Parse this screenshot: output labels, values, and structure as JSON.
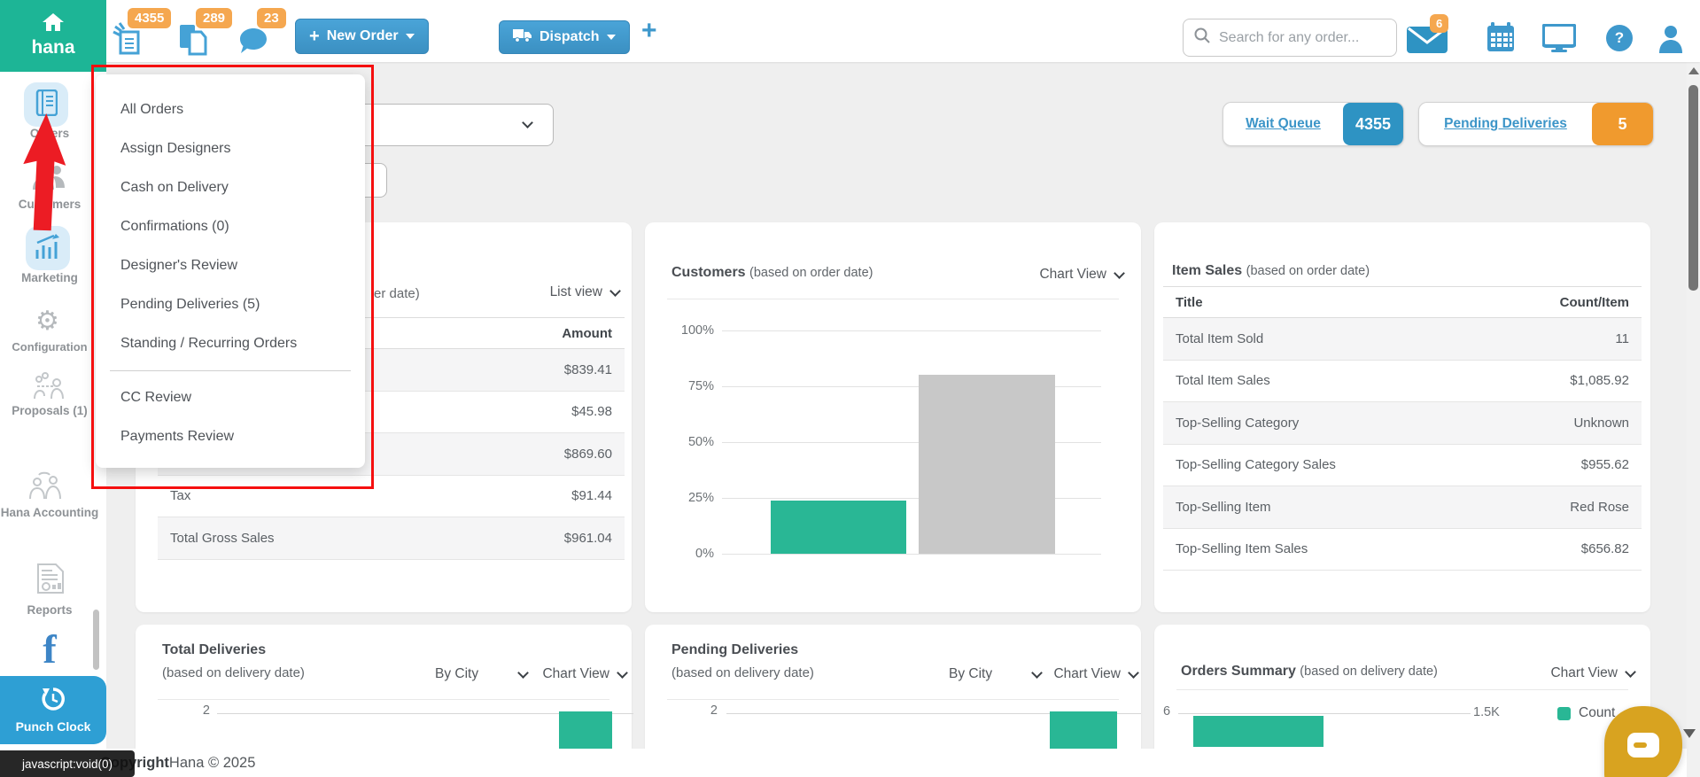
{
  "topbar": {
    "brand": "hana",
    "orders_badge": "4355",
    "copies_badge": "289",
    "chat_badge": "23",
    "new_order_label": "New Order",
    "dispatch_label": "Dispatch",
    "plus": "+",
    "search_placeholder": "Search for any order...",
    "mail_badge": "6",
    "help_glyph": "?"
  },
  "sidebar": {
    "orders": "Orders",
    "customers": "Customers",
    "marketing": "Marketing",
    "configuration": "Configuration",
    "proposals": "Proposals (1)",
    "accounting": "Hana Accounting",
    "reports": "Reports",
    "facebook": "f",
    "punch_clock": "Punch Clock"
  },
  "orders_menu": {
    "items": [
      "All Orders",
      "Assign Designers",
      "Cash on Delivery",
      "Confirmations (0)",
      "Designer's Review",
      "Pending Deliveries (5)",
      "Standing / Recurring Orders",
      "CC Review",
      "Payments Review"
    ]
  },
  "queue": {
    "wait_label": "Wait Queue",
    "wait_count": "4355",
    "pending_label": "Pending Deliveries",
    "pending_count": "5"
  },
  "sales_card": {
    "title_fragment": "er date)",
    "view": "List view",
    "amount_header": "Amount",
    "rows": [
      {
        "label": "",
        "value": "$839.41"
      },
      {
        "label": "",
        "value": "$45.98"
      },
      {
        "label": "",
        "value": "$869.60"
      },
      {
        "label": "Tax",
        "value": "$91.44"
      },
      {
        "label": "Total Gross Sales",
        "value": "$961.04"
      }
    ]
  },
  "customers_card": {
    "title": "Customers",
    "subtitle": "(based on order date)",
    "view": "Chart View",
    "yticks": [
      "100%",
      "75%",
      "50%",
      "25%",
      "0%"
    ]
  },
  "item_sales_card": {
    "title": "Item Sales",
    "subtitle": "(based on order date)",
    "col1": "Title",
    "col2": "Count/Item",
    "rows": [
      {
        "label": "Total Item Sold",
        "value": "11"
      },
      {
        "label": "Total Item Sales",
        "value": "$1,085.92"
      },
      {
        "label": "Top-Selling Category",
        "value": "Unknown"
      },
      {
        "label": "Top-Selling Category Sales",
        "value": "$955.62"
      },
      {
        "label": "Top-Selling Item",
        "value": "Red Rose"
      },
      {
        "label": "Top-Selling Item Sales",
        "value": "$656.82"
      }
    ]
  },
  "total_deliveries_card": {
    "title": "Total Deliveries",
    "subtitle": "(based on delivery date)",
    "by": "By City",
    "view": "Chart View",
    "ytick": "2"
  },
  "pending_deliveries_card": {
    "title": "Pending Deliveries",
    "subtitle": "(based on delivery date)",
    "by": "By City",
    "view": "Chart View",
    "ytick": "2"
  },
  "orders_summary_card": {
    "title": "Orders Summary",
    "subtitle": "(based on delivery date)",
    "view": "Chart View",
    "ytick": "6",
    "axis_end": "1.5K",
    "legend_count": "Count"
  },
  "footer": {
    "tooltip": "javascript:void(0)",
    "copyright_bold": "Copyright",
    "copyright_rest": "Hana © 2025"
  },
  "colors": {
    "teal": "#1db596",
    "button_blue": "#3e96c9",
    "badge_orange": "#f5a74f",
    "pill_blue": "#2e93c3",
    "pill_orange": "#f09a2e",
    "bar_green": "#29b795",
    "bar_gray": "#c8c8c8",
    "fab_gold": "#d8a320",
    "annotation_red": "#f50f0f"
  },
  "chart_data": [
    {
      "id": "customers",
      "type": "bar",
      "title": "Customers (based on order date)",
      "categories": [
        "",
        ""
      ],
      "values": [
        24,
        80
      ],
      "colors": [
        "#29b795",
        "#c8c8c8"
      ],
      "ylim": [
        0,
        100
      ],
      "yticks": [
        0,
        25,
        50,
        75,
        100
      ],
      "ytick_format": "percent",
      "grid": true,
      "legend_position": "none"
    },
    {
      "id": "total_deliveries",
      "type": "bar",
      "title": "Total Deliveries (based on delivery date)",
      "group_by": "By City",
      "visible_ytick": 2,
      "values": [
        2
      ],
      "colors": [
        "#29b795"
      ],
      "layout_note": "chart clipped by viewport bottom"
    },
    {
      "id": "pending_deliveries",
      "type": "bar",
      "title": "Pending Deliveries (based on delivery date)",
      "group_by": "By City",
      "visible_ytick": 2,
      "values": [
        2
      ],
      "colors": [
        "#29b795"
      ],
      "layout_note": "chart clipped by viewport bottom"
    },
    {
      "id": "orders_summary",
      "type": "bar-horizontal",
      "title": "Orders Summary (based on delivery date)",
      "visible_ytick": "6",
      "axis_end_label": "1.5K",
      "series": [
        {
          "name": "Count",
          "fraction_of_axis": 0.45,
          "color": "#29b795"
        }
      ],
      "legend": [
        "Count"
      ],
      "layout_note": "chart clipped by viewport bottom"
    }
  ]
}
